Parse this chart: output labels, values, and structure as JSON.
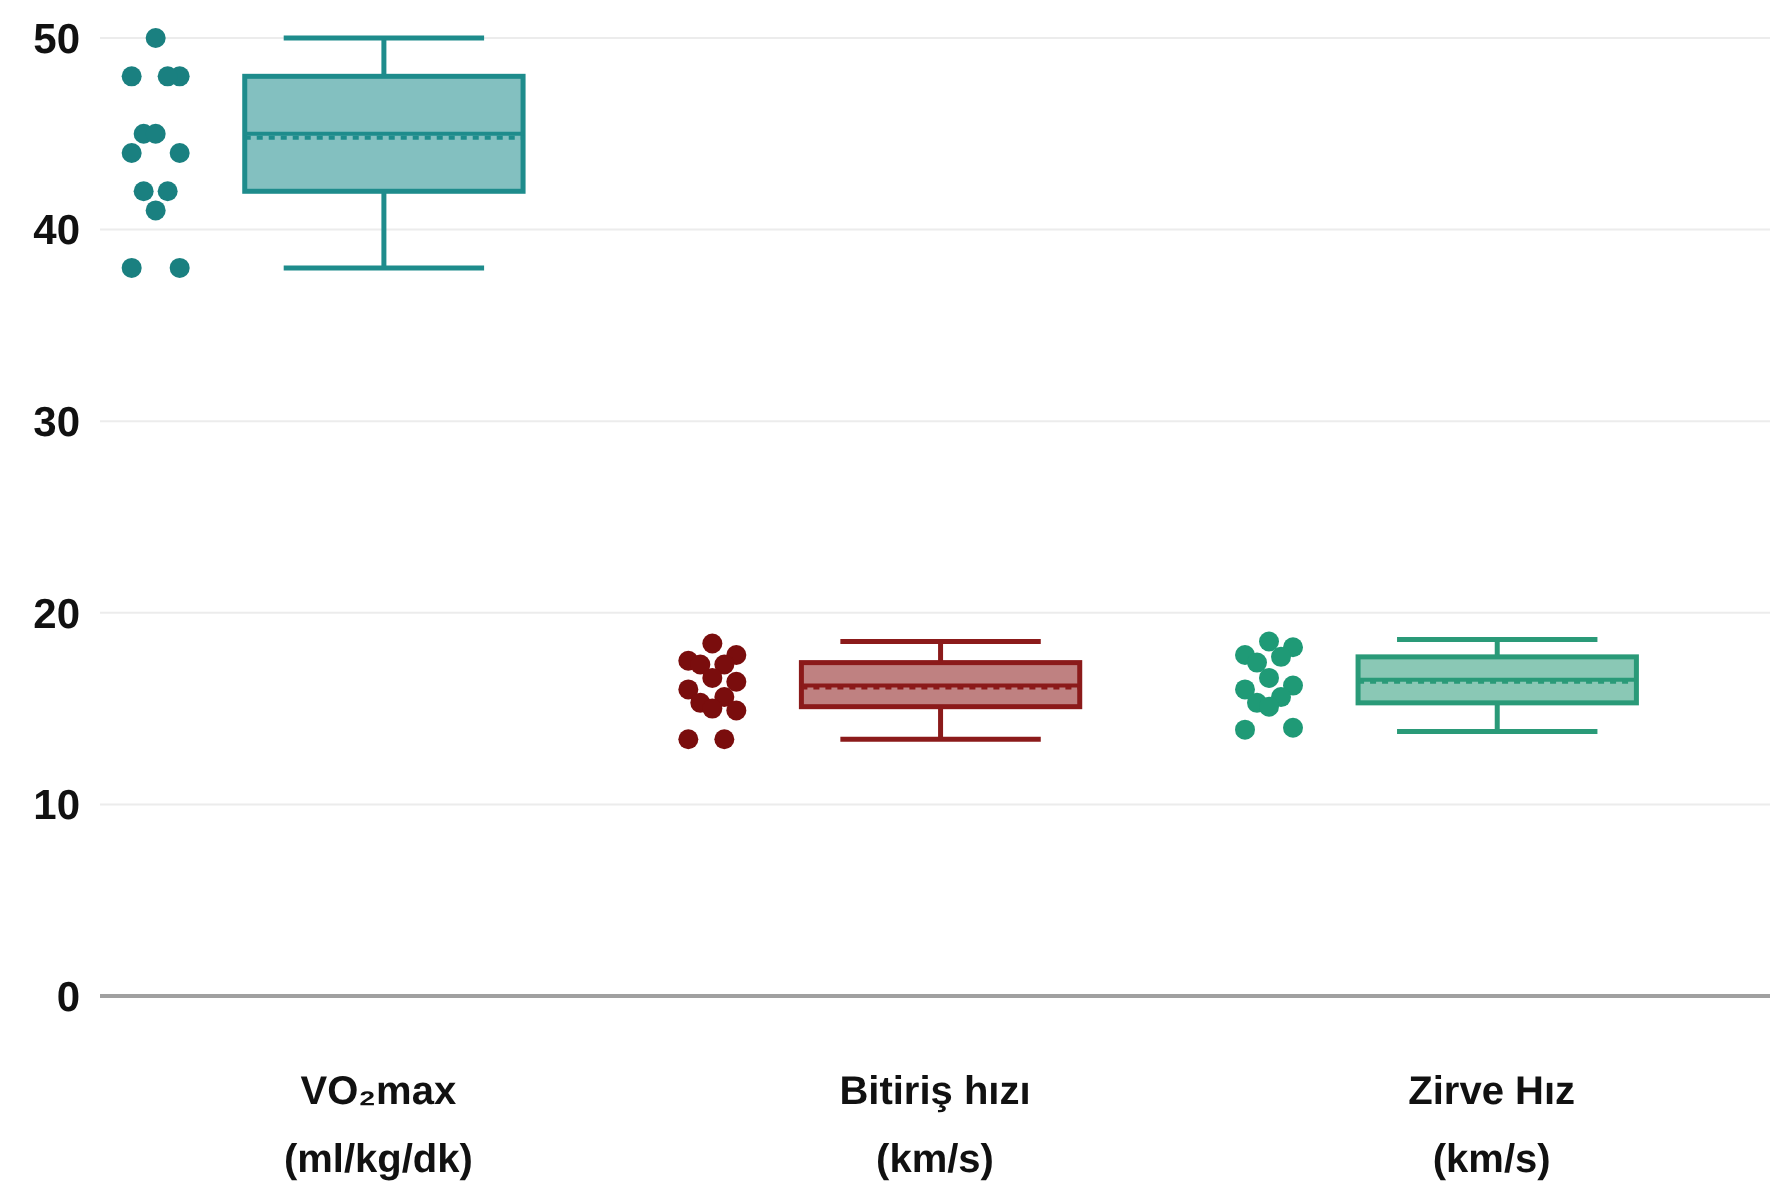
{
  "chart_data": {
    "type": "box",
    "categories": [
      "VO₂max\n(ml/kg/dk)",
      "Bitiriş hızı\n(km/s)",
      "Zirve Hız\n(km/s)"
    ],
    "ylim": [
      0,
      50
    ],
    "yticks": [
      0,
      10,
      20,
      30,
      40,
      50
    ],
    "grid": "y",
    "series": [
      {
        "colors": [
          "#1e8c8c",
          "#8b1a1a",
          "#2a9a78"
        ],
        "boxes": [
          {
            "low": 38,
            "q1": 42,
            "median": 45,
            "q3": 48,
            "high": 50,
            "mean": 44.8
          },
          {
            "low": 13.4,
            "q1": 15.1,
            "median": 16.2,
            "q3": 17.4,
            "high": 18.5,
            "mean": 16.1
          },
          {
            "low": 13.8,
            "q1": 15.3,
            "median": 16.5,
            "q3": 17.7,
            "high": 18.6,
            "mean": 16.4
          }
        ]
      },
      {
        "type": "scatter",
        "color": "#1a8080",
        "x": [
          "VO₂max\n(ml/kg/dk)",
          "VO₂max\n(ml/kg/dk)",
          "VO₂max\n(ml/kg/dk)",
          "VO₂max\n(ml/kg/dk)",
          "VO₂max\n(ml/kg/dk)",
          "VO₂max\n(ml/kg/dk)",
          "VO₂max\n(ml/kg/dk)",
          "VO₂max\n(ml/kg/dk)",
          "VO₂max\n(ml/kg/dk)",
          "VO₂max\n(ml/kg/dk)",
          "VO₂max\n(ml/kg/dk)",
          "VO₂max\n(ml/kg/dk)",
          "VO₂max\n(ml/kg/dk)"
        ],
        "values": [
          50,
          48,
          48,
          48,
          45,
          45,
          44,
          44,
          42,
          42,
          41,
          38,
          38
        ]
      },
      {
        "type": "scatter",
        "color": "#7a0d0d",
        "x": [
          "Bitiriş hızı\n(km/s)",
          "Bitiriş hızı\n(km/s)",
          "Bitiriş hızı\n(km/s)",
          "Bitiriş hızı\n(km/s)",
          "Bitiriş hızı\n(km/s)",
          "Bitiriş hızı\n(km/s)",
          "Bitiriş hızı\n(km/s)",
          "Bitiriş hızı\n(km/s)",
          "Bitiriş hızı\n(km/s)",
          "Bitiriş hızı\n(km/s)",
          "Bitiriş hızı\n(km/s)",
          "Bitiriş hızı\n(km/s)",
          "Bitiriş hızı\n(km/s)",
          "Bitiriş hızı\n(km/s)"
        ],
        "values": [
          18.4,
          17.8,
          17.5,
          17.3,
          17.3,
          16.6,
          16.4,
          16,
          15.6,
          15.3,
          15,
          14.9,
          13.4,
          13.4
        ]
      },
      {
        "type": "scatter",
        "color": "#1f9a76",
        "x": [
          "Zirve Hız\n(km/s)",
          "Zirve Hız\n(km/s)",
          "Zirve Hız\n(km/s)",
          "Zirve Hız\n(km/s)",
          "Zirve Hız\n(km/s)",
          "Zirve Hız\n(km/s)",
          "Zirve Hız\n(km/s)",
          "Zirve Hız\n(km/s)",
          "Zirve Hız\n(km/s)",
          "Zirve Hız\n(km/s)",
          "Zirve Hız\n(km/s)",
          "Zirve Hız\n(km/s)",
          "Zirve Hız\n(km/s)"
        ],
        "values": [
          18.5,
          18.2,
          17.8,
          17.7,
          17.4,
          16.6,
          16.2,
          16,
          15.6,
          15.3,
          15.1,
          14,
          13.9
        ]
      }
    ],
    "marker": "circle"
  }
}
